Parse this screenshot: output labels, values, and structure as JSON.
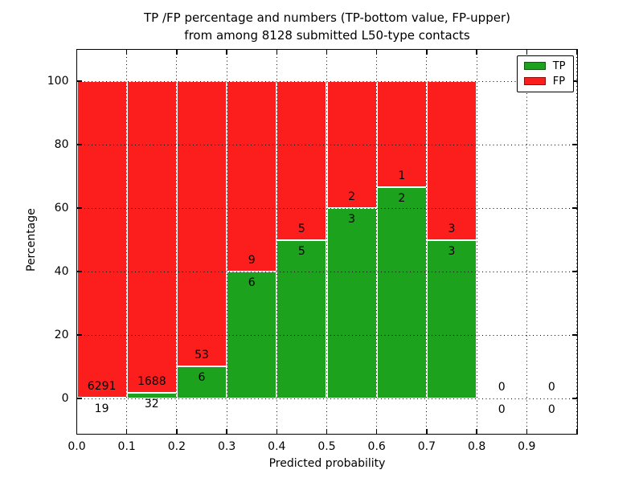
{
  "chart_data": {
    "type": "bar",
    "stacked": true,
    "title_line1": "TP /FP percentage and numbers (TP-bottom value, FP-upper)",
    "title_line2": "from among 8128 submitted L50-type contacts",
    "xlabel": "Predicted probability",
    "ylabel": "Percentage",
    "xlim": [
      0.0,
      1.0
    ],
    "ylim": [
      -11,
      110
    ],
    "bar_width": 0.1,
    "xticks": [
      {
        "pos": 0.0,
        "label": "0.0"
      },
      {
        "pos": 0.1,
        "label": "0.1"
      },
      {
        "pos": 0.2,
        "label": "0.2"
      },
      {
        "pos": 0.3,
        "label": "0.3"
      },
      {
        "pos": 0.4,
        "label": "0.4"
      },
      {
        "pos": 0.5,
        "label": "0.5"
      },
      {
        "pos": 0.6,
        "label": "0.6"
      },
      {
        "pos": 0.7,
        "label": "0.7"
      },
      {
        "pos": 0.8,
        "label": "0.8"
      },
      {
        "pos": 0.9,
        "label": "0.9"
      },
      {
        "pos": 1.0,
        "label": ""
      }
    ],
    "yticks": [
      {
        "pos": 0,
        "label": "0"
      },
      {
        "pos": 20,
        "label": "20"
      },
      {
        "pos": 40,
        "label": "40"
      },
      {
        "pos": 60,
        "label": "60"
      },
      {
        "pos": 80,
        "label": "80"
      },
      {
        "pos": 100,
        "label": "100"
      }
    ],
    "grid": {
      "linestyle": "dotted",
      "color": "#000000",
      "on_top": true
    },
    "colors": {
      "tp": "#1ca21c",
      "fp": "#fc1d1d",
      "bar_edge": "#ffffff"
    },
    "legend": {
      "position": "upper-right",
      "entries": [
        {
          "name": "tp",
          "label": "TP",
          "color": "#1ca21c"
        },
        {
          "name": "fp",
          "label": "FP",
          "color": "#fc1d1d"
        }
      ]
    },
    "total_submitted": 8128,
    "annotation_rule": "FP count above TP/FP boundary, TP count below boundary",
    "bins": [
      {
        "x_range": [
          0.0,
          0.1
        ],
        "tp_count": 19,
        "fp_count": 6291,
        "tp_pct": 0.3,
        "fp_pct": 99.7
      },
      {
        "x_range": [
          0.1,
          0.2
        ],
        "tp_count": 32,
        "fp_count": 1688,
        "tp_pct": 1.86,
        "fp_pct": 98.14
      },
      {
        "x_range": [
          0.2,
          0.3
        ],
        "tp_count": 6,
        "fp_count": 53,
        "tp_pct": 10.17,
        "fp_pct": 89.83
      },
      {
        "x_range": [
          0.3,
          0.4
        ],
        "tp_count": 6,
        "fp_count": 9,
        "tp_pct": 40.0,
        "fp_pct": 60.0
      },
      {
        "x_range": [
          0.4,
          0.5
        ],
        "tp_count": 5,
        "fp_count": 5,
        "tp_pct": 50.0,
        "fp_pct": 50.0
      },
      {
        "x_range": [
          0.5,
          0.6
        ],
        "tp_count": 3,
        "fp_count": 2,
        "tp_pct": 60.0,
        "fp_pct": 40.0
      },
      {
        "x_range": [
          0.6,
          0.7
        ],
        "tp_count": 2,
        "fp_count": 1,
        "tp_pct": 66.67,
        "fp_pct": 33.33
      },
      {
        "x_range": [
          0.7,
          0.8
        ],
        "tp_count": 3,
        "fp_count": 3,
        "tp_pct": 50.0,
        "fp_pct": 50.0
      },
      {
        "x_range": [
          0.8,
          0.9
        ],
        "tp_count": 0,
        "fp_count": 0,
        "tp_pct": null,
        "fp_pct": null
      },
      {
        "x_range": [
          0.9,
          1.0
        ],
        "tp_count": 0,
        "fp_count": 0,
        "tp_pct": null,
        "fp_pct": null
      }
    ]
  }
}
